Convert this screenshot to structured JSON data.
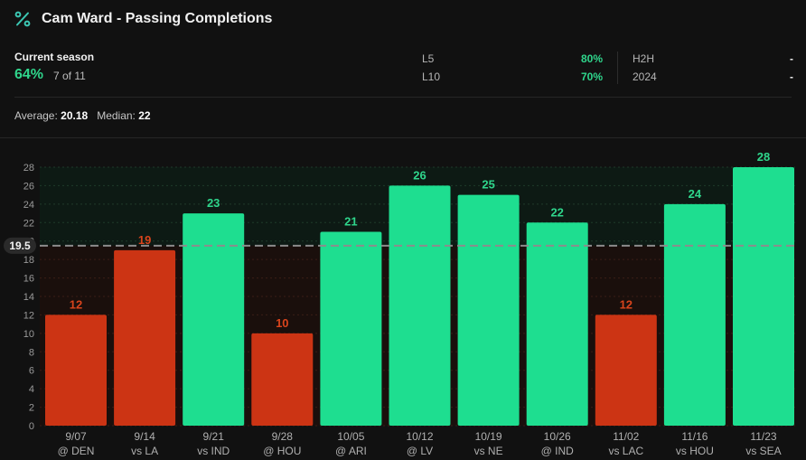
{
  "header": {
    "title": "Cam Ward - Passing Completions",
    "icon": "percent-icon",
    "icon_color": "#3cc8b4"
  },
  "current_season": {
    "label": "Current season",
    "percent": "64%",
    "record": "7 of 11"
  },
  "stats": [
    {
      "label": "L5",
      "value": "80%"
    },
    {
      "label": "L10",
      "value": "70%"
    },
    {
      "label": "H2H",
      "value": "-"
    },
    {
      "label": "2024",
      "value": "-"
    }
  ],
  "summary": {
    "average_label": "Average:",
    "average_value": "20.18",
    "median_label": "Median:",
    "median_value": "22"
  },
  "colors": {
    "over": "#1ede90",
    "under": "#cc3414",
    "over_label": "#2fd68c",
    "under_label": "#d9441c",
    "background": "#111111"
  },
  "chart_data": {
    "type": "bar",
    "categories": [
      [
        "9/07",
        "@ DEN"
      ],
      [
        "9/14",
        "vs LA"
      ],
      [
        "9/21",
        "vs IND"
      ],
      [
        "9/28",
        "@ HOU"
      ],
      [
        "10/05",
        "@ ARI"
      ],
      [
        "10/12",
        "@ LV"
      ],
      [
        "10/19",
        "vs NE"
      ],
      [
        "10/26",
        "@ IND"
      ],
      [
        "11/02",
        "vs LAC"
      ],
      [
        "11/16",
        "vs HOU"
      ],
      [
        "11/23",
        "vs SEA"
      ]
    ],
    "values": [
      12,
      19,
      23,
      10,
      21,
      26,
      25,
      22,
      12,
      24,
      28
    ],
    "line": 19.5,
    "line_label": "19.5",
    "ylim": [
      0,
      28
    ],
    "yticks": [
      0,
      2,
      4,
      6,
      8,
      10,
      12,
      14,
      16,
      18,
      20,
      22,
      24,
      26,
      28
    ],
    "grid": true
  }
}
